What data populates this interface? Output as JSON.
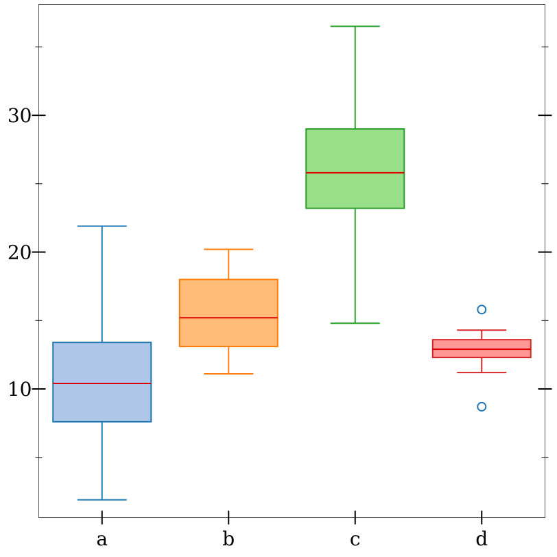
{
  "chart_data": {
    "type": "box",
    "title": "",
    "xlabel": "",
    "ylabel": "",
    "categories": [
      "a",
      "b",
      "c",
      "d"
    ],
    "ylim": [
      0.6,
      38.1
    ],
    "y_major_ticks": [
      10,
      20,
      30
    ],
    "y_minor_ticks": [
      5,
      15,
      25,
      35
    ],
    "grid": false,
    "boxes": [
      {
        "category": "a",
        "whisker_low": 1.9,
        "q1": 7.6,
        "median": 10.4,
        "q3": 13.4,
        "whisker_high": 21.9,
        "outliers": [],
        "face_color": "#aec7e8",
        "edge_color": "#1f77b4"
      },
      {
        "category": "b",
        "whisker_low": 11.1,
        "q1": 13.1,
        "median": 15.2,
        "q3": 18.0,
        "whisker_high": 20.2,
        "outliers": [],
        "face_color": "#ffbb78",
        "edge_color": "#ff7f0e"
      },
      {
        "category": "c",
        "whisker_low": 14.8,
        "q1": 23.2,
        "median": 25.8,
        "q3": 29.0,
        "whisker_high": 36.5,
        "outliers": [],
        "face_color": "#98df8a",
        "edge_color": "#2ca02c"
      },
      {
        "category": "d",
        "whisker_low": 11.2,
        "q1": 12.3,
        "median": 12.9,
        "q3": 13.6,
        "whisker_high": 14.3,
        "outliers": [
          15.8,
          8.7
        ],
        "face_color": "#ff9896",
        "edge_color": "#d62728"
      }
    ],
    "median_color": "#e00000",
    "outlier_color": "#1f77b4"
  }
}
